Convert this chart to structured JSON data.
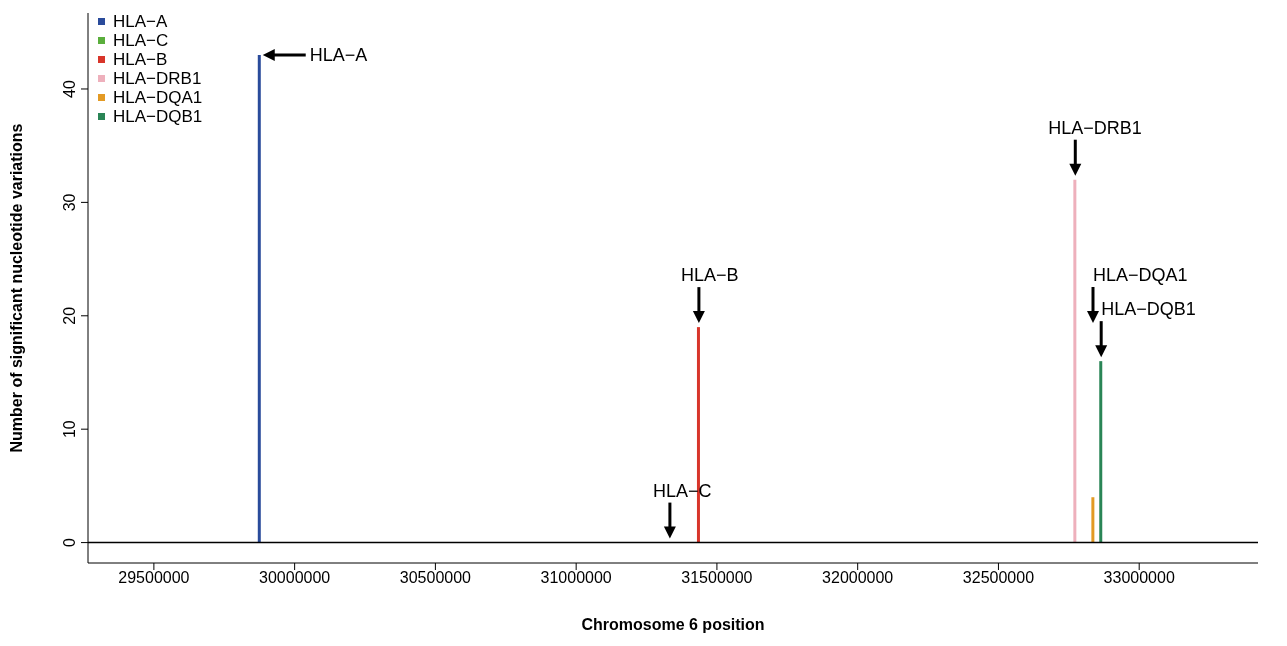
{
  "chart_data": {
    "type": "bar",
    "xlabel": "Chromosome 6 position",
    "ylabel": "Number of significant nucleotide variations",
    "series": [
      {
        "name": "HLA−A",
        "color": "#2a4b9b",
        "x": [
          29876000
        ],
        "values": [
          43
        ]
      },
      {
        "name": "HLA−C",
        "color": "#5aae3c",
        "x": [
          31333000
        ],
        "values": [
          0
        ]
      },
      {
        "name": "HLA−B",
        "color": "#d8352a",
        "x": [
          31436000
        ],
        "values": [
          19
        ]
      },
      {
        "name": "HLA−DRB1",
        "color": "#eeb0bc",
        "x": [
          32773000
        ],
        "values": [
          32
        ]
      },
      {
        "name": "HLA−DQA1",
        "color": "#e39a24",
        "x": [
          32837000
        ],
        "values": [
          4
        ]
      },
      {
        "name": "HLA−DQB1",
        "color": "#2a8556",
        "x": [
          32865000
        ],
        "values": [
          16
        ]
      }
    ],
    "xlim": [
      29266000,
      33422000
    ],
    "xticks": [
      29500000,
      30000000,
      30500000,
      31000000,
      31500000,
      32000000,
      32500000,
      33000000
    ],
    "ylim": [
      -1.8,
      46.7
    ],
    "yticks": [
      0,
      10,
      20,
      30,
      40
    ],
    "ref_lines": [
      {
        "axis": "y",
        "value": 0,
        "color": "#000000"
      }
    ],
    "annotations": [
      {
        "text": "HLA−A",
        "x": 29876000,
        "y": 43
      },
      {
        "text": "HLA−B",
        "x": 31436000,
        "y": 19
      },
      {
        "text": "HLA−C",
        "x": 31333000,
        "y": 0
      },
      {
        "text": "HLA−DRB1",
        "x": 32773000,
        "y": 32
      },
      "HLA−DQA1",
      {
        "text": "HLA−DQB1",
        "x": 32865000,
        "y": 16
      }
    ],
    "legend": "top left",
    "grid": false
  }
}
